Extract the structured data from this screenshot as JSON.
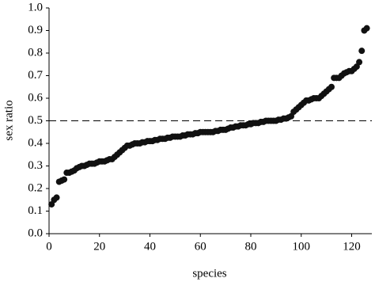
{
  "chart_data": {
    "type": "scatter",
    "x_label": "species",
    "y_label": "sex ratio",
    "x": [
      1,
      2,
      3,
      4,
      5,
      6,
      7,
      8,
      9,
      10,
      11,
      12,
      13,
      14,
      15,
      16,
      17,
      18,
      19,
      20,
      21,
      22,
      23,
      24,
      25,
      26,
      27,
      28,
      29,
      30,
      31,
      32,
      33,
      34,
      35,
      36,
      37,
      38,
      39,
      40,
      41,
      42,
      43,
      44,
      45,
      46,
      47,
      48,
      49,
      50,
      51,
      52,
      53,
      54,
      55,
      56,
      57,
      58,
      59,
      60,
      61,
      62,
      63,
      64,
      65,
      66,
      67,
      68,
      69,
      70,
      71,
      72,
      73,
      74,
      75,
      76,
      77,
      78,
      79,
      80,
      81,
      82,
      83,
      84,
      85,
      86,
      87,
      88,
      89,
      90,
      91,
      92,
      93,
      94,
      95,
      96,
      97,
      98,
      99,
      100,
      101,
      102,
      103,
      104,
      105,
      106,
      107,
      108,
      109,
      110,
      111,
      112,
      113,
      114,
      115,
      116,
      117,
      118,
      119,
      120,
      121,
      122,
      123,
      124,
      125,
      126
    ],
    "values": [
      0.13,
      0.15,
      0.16,
      0.23,
      0.235,
      0.24,
      0.27,
      0.27,
      0.275,
      0.28,
      0.29,
      0.295,
      0.3,
      0.3,
      0.305,
      0.31,
      0.31,
      0.31,
      0.315,
      0.32,
      0.32,
      0.32,
      0.325,
      0.33,
      0.33,
      0.34,
      0.35,
      0.36,
      0.37,
      0.38,
      0.39,
      0.39,
      0.395,
      0.4,
      0.4,
      0.4,
      0.405,
      0.405,
      0.41,
      0.41,
      0.41,
      0.415,
      0.415,
      0.42,
      0.42,
      0.42,
      0.425,
      0.425,
      0.43,
      0.43,
      0.43,
      0.43,
      0.435,
      0.435,
      0.44,
      0.44,
      0.44,
      0.445,
      0.445,
      0.45,
      0.45,
      0.45,
      0.45,
      0.45,
      0.45,
      0.455,
      0.455,
      0.46,
      0.46,
      0.46,
      0.465,
      0.47,
      0.47,
      0.475,
      0.475,
      0.48,
      0.48,
      0.48,
      0.485,
      0.485,
      0.49,
      0.49,
      0.49,
      0.495,
      0.495,
      0.5,
      0.5,
      0.5,
      0.5,
      0.5,
      0.505,
      0.505,
      0.51,
      0.51,
      0.515,
      0.52,
      0.54,
      0.55,
      0.56,
      0.57,
      0.58,
      0.59,
      0.59,
      0.595,
      0.6,
      0.6,
      0.6,
      0.61,
      0.62,
      0.63,
      0.64,
      0.65,
      0.69,
      0.69,
      0.69,
      0.7,
      0.71,
      0.715,
      0.72,
      0.72,
      0.73,
      0.74,
      0.76,
      0.81,
      0.9,
      0.91
    ],
    "color": "#111111",
    "reference_line": 0.5,
    "xlim": [
      0,
      128
    ],
    "xticks": [
      0,
      20,
      40,
      60,
      80,
      100,
      120
    ],
    "ylim": [
      0,
      1
    ],
    "yticks": [
      {
        "value": 0,
        "label": "0.0"
      },
      0.1,
      0.2,
      0.3,
      0.4,
      0.5,
      0.6,
      0.7,
      0.8,
      0.9,
      {
        "value": 1,
        "label": "1.0"
      }
    ]
  }
}
